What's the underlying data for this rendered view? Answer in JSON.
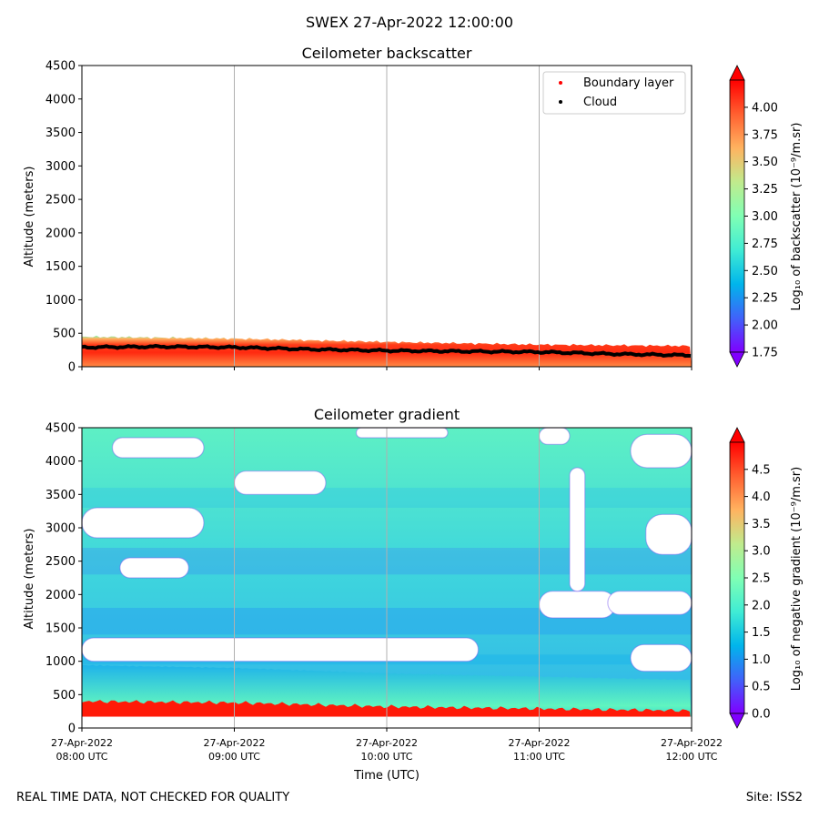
{
  "figure": {
    "suptitle": "SWEX 27-Apr-2022 12:00:00",
    "footer_left": "REAL TIME DATA, NOT CHECKED FOR QUALITY",
    "footer_right": "Site: ISS2"
  },
  "chart_data": [
    {
      "type": "heatmap",
      "title": "Ceilometer backscatter",
      "ylabel": "Altitude (meters)",
      "ylim": [
        0,
        4500
      ],
      "yticks": [
        0,
        500,
        1000,
        1500,
        2000,
        2500,
        3000,
        3500,
        4000,
        4500
      ],
      "xlim_hours": [
        8,
        12
      ],
      "xticks_hours": [
        8,
        9,
        10,
        11,
        12
      ],
      "xtick_labels_shown": false,
      "grid": "vertical",
      "legend": {
        "placement": "top-right",
        "entries": [
          {
            "label": "Boundary layer",
            "color": "#ff0000"
          },
          {
            "label": "Cloud",
            "color": "#000000"
          }
        ]
      },
      "colorbar": {
        "label": "Log₁₀ of backscatter (10⁻⁹/m.sr)",
        "colormap": "rainbow",
        "range": [
          1.75,
          4.25
        ],
        "ticks": [
          "1.75",
          "2.00",
          "2.25",
          "2.50",
          "2.75",
          "3.00",
          "3.25",
          "3.50",
          "3.75",
          "4.00"
        ],
        "extend": "both"
      },
      "layer_top_m": {
        "x_hours": [
          8,
          9,
          10,
          11,
          12
        ],
        "values": [
          450,
          420,
          370,
          330,
          310
        ]
      },
      "cloud_base_m": {
        "x_hours": [
          8,
          8.5,
          9,
          9.5,
          10,
          10.5,
          11,
          11.5,
          12
        ],
        "values": [
          290,
          300,
          290,
          260,
          240,
          230,
          220,
          190,
          170
        ]
      }
    },
    {
      "type": "heatmap",
      "title": "Ceilometer gradient",
      "ylabel": "Altitude (meters)",
      "xlabel": "Time (UTC)",
      "ylim": [
        0,
        4500
      ],
      "yticks": [
        0,
        500,
        1000,
        1500,
        2000,
        2500,
        3000,
        3500,
        4000,
        4500
      ],
      "xlim_hours": [
        8,
        12
      ],
      "xticks_hours": [
        8,
        9,
        10,
        11,
        12
      ],
      "xtick_labels": [
        [
          "27-Apr-2022",
          "08:00 UTC"
        ],
        [
          "27-Apr-2022",
          "09:00 UTC"
        ],
        [
          "27-Apr-2022",
          "10:00 UTC"
        ],
        [
          "27-Apr-2022",
          "11:00 UTC"
        ],
        [
          "27-Apr-2022",
          "12:00 UTC"
        ]
      ],
      "grid": "vertical",
      "colorbar": {
        "label": "Log₁₀ of negative gradient (10⁻⁹/m.sr)",
        "colormap": "rainbow",
        "range": [
          0,
          5
        ],
        "ticks": [
          "0.0",
          "0.5",
          "1.0",
          "1.5",
          "2.0",
          "2.5",
          "3.0",
          "3.5",
          "4.0",
          "4.5"
        ],
        "extend": "both"
      },
      "surface_layer_top_m": {
        "x_hours": [
          8,
          9,
          10,
          11,
          12
        ],
        "values": [
          400,
          380,
          320,
          290,
          260
        ]
      },
      "clear_regions_m": [
        {
          "x_hours": [
            8.0,
            10.6
          ],
          "alt": [
            1000,
            1350
          ]
        },
        {
          "x_hours": [
            11.6,
            12.0
          ],
          "alt": [
            850,
            1250
          ]
        },
        {
          "x_hours": [
            11.0,
            11.5
          ],
          "alt": [
            1650,
            2050
          ]
        },
        {
          "x_hours": [
            11.2,
            11.3
          ],
          "alt": [
            2050,
            3900
          ]
        },
        {
          "x_hours": [
            11.45,
            12.0
          ],
          "alt": [
            1700,
            2050
          ]
        },
        {
          "x_hours": [
            8.0,
            8.8
          ],
          "alt": [
            2850,
            3300
          ]
        },
        {
          "x_hours": [
            8.25,
            8.7
          ],
          "alt": [
            2250,
            2550
          ]
        },
        {
          "x_hours": [
            8.2,
            8.8
          ],
          "alt": [
            4050,
            4350
          ]
        },
        {
          "x_hours": [
            9.0,
            9.6
          ],
          "alt": [
            3500,
            3850
          ]
        },
        {
          "x_hours": [
            9.8,
            10.4
          ],
          "alt": [
            4350,
            4500
          ]
        },
        {
          "x_hours": [
            11.7,
            12.0
          ],
          "alt": [
            2600,
            3200
          ]
        },
        {
          "x_hours": [
            11.6,
            12.0
          ],
          "alt": [
            3900,
            4400
          ]
        },
        {
          "x_hours": [
            11.0,
            11.2
          ],
          "alt": [
            4250,
            4500
          ]
        }
      ]
    }
  ]
}
